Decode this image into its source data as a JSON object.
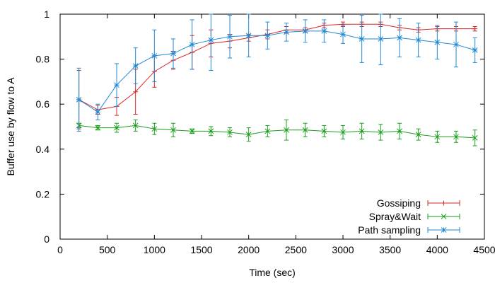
{
  "chart_data": {
    "type": "line",
    "xlabel": "Time (sec)",
    "ylabel": "Buffer use by flow to A",
    "xlim": [
      0,
      4500
    ],
    "ylim": [
      0,
      1
    ],
    "xticks": [
      0,
      500,
      1000,
      1500,
      2000,
      2500,
      3000,
      3500,
      4000,
      4500
    ],
    "yticks": [
      0,
      0.2,
      0.4,
      0.6,
      0.8,
      1
    ],
    "ytick_labels": [
      "0",
      "0.2",
      "0.4",
      "0.6",
      "0.8",
      "1"
    ],
    "grid": false,
    "legend_position": "bottom-right",
    "x": [
      200,
      400,
      600,
      800,
      1000,
      1200,
      1400,
      1600,
      1800,
      2000,
      2200,
      2400,
      2600,
      2800,
      3000,
      3200,
      3400,
      3600,
      3800,
      4000,
      4200,
      4400
    ],
    "series": [
      {
        "name": "Gossiping",
        "color": "#d62828",
        "marker": "plus",
        "values": [
          0.62,
          0.575,
          0.59,
          0.655,
          0.745,
          0.795,
          0.83,
          0.87,
          0.88,
          0.895,
          0.91,
          0.93,
          0.93,
          0.95,
          0.955,
          0.955,
          0.955,
          0.94,
          0.93,
          0.935,
          0.935,
          0.935
        ],
        "err": [
          0.13,
          0.02,
          0.04,
          0.1,
          0.07,
          0.04,
          0.075,
          0.06,
          0.03,
          0.015,
          0.02,
          0.015,
          0.01,
          0.01,
          0.01,
          0.01,
          0.01,
          0.01,
          0.01,
          0.01,
          0.01,
          0.01
        ]
      },
      {
        "name": "Spray&Wait",
        "color": "#1a9e1a",
        "marker": "cross",
        "values": [
          0.505,
          0.495,
          0.495,
          0.505,
          0.49,
          0.485,
          0.48,
          0.48,
          0.475,
          0.465,
          0.48,
          0.485,
          0.485,
          0.48,
          0.475,
          0.48,
          0.475,
          0.48,
          0.465,
          0.455,
          0.455,
          0.45
        ],
        "err": [
          0.01,
          0.01,
          0.02,
          0.025,
          0.025,
          0.03,
          0.01,
          0.02,
          0.02,
          0.03,
          0.025,
          0.045,
          0.03,
          0.025,
          0.03,
          0.035,
          0.035,
          0.035,
          0.025,
          0.025,
          0.025,
          0.035
        ]
      },
      {
        "name": "Path sampling",
        "color": "#1f8ad6",
        "marker": "star",
        "values": [
          0.62,
          0.565,
          0.685,
          0.77,
          0.815,
          0.825,
          0.865,
          0.885,
          0.9,
          0.905,
          0.905,
          0.92,
          0.925,
          0.925,
          0.91,
          0.89,
          0.89,
          0.895,
          0.885,
          0.875,
          0.865,
          0.84
        ],
        "err": [
          0.14,
          0.035,
          0.095,
          0.08,
          0.115,
          0.065,
          0.11,
          0.135,
          0.095,
          0.095,
          0.06,
          0.04,
          0.05,
          0.05,
          0.04,
          0.105,
          0.115,
          0.085,
          0.075,
          0.075,
          0.1,
          0.055
        ]
      }
    ]
  }
}
